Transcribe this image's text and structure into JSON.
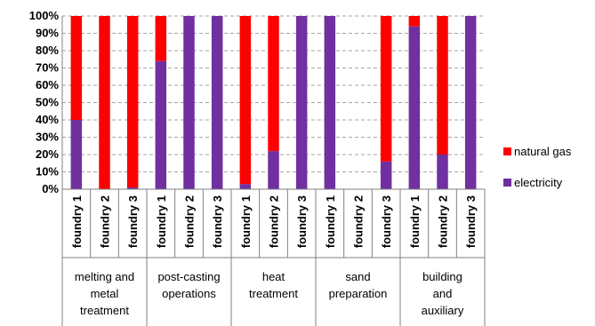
{
  "chart_data": {
    "type": "bar",
    "stacked": true,
    "percent": true,
    "ylim": [
      0,
      100
    ],
    "y_ticks": [
      "0%",
      "10%",
      "20%",
      "30%",
      "40%",
      "50%",
      "60%",
      "70%",
      "80%",
      "90%",
      "100%"
    ],
    "grid": "horizontal dashed",
    "legend_position": "right",
    "categories": [
      "foundry 1",
      "foundry 2",
      "foundry 3",
      "foundry 1",
      "foundry 2",
      "foundry 3",
      "foundry 1",
      "foundry 2",
      "foundry 3",
      "foundry 1",
      "foundry 2",
      "foundry 3",
      "foundry 1",
      "foundry 2",
      "foundry 3"
    ],
    "groups": [
      {
        "label_lines": [
          "melting and",
          "metal",
          "treatment"
        ],
        "start": 0,
        "count": 3
      },
      {
        "label_lines": [
          "post-casting",
          "operations"
        ],
        "start": 3,
        "count": 3
      },
      {
        "label_lines": [
          "heat",
          "treatment"
        ],
        "start": 6,
        "count": 3
      },
      {
        "label_lines": [
          "sand",
          "preparation"
        ],
        "start": 9,
        "count": 3
      },
      {
        "label_lines": [
          "building",
          "and",
          "auxiliary"
        ],
        "start": 12,
        "count": 3
      }
    ],
    "series": [
      {
        "name": "electricity",
        "color": "#7030A0",
        "values": [
          40,
          0,
          1,
          74,
          100,
          100,
          3,
          22,
          100,
          100,
          0,
          16,
          94,
          20,
          100
        ]
      },
      {
        "name": "natural gas",
        "color": "#FF0000",
        "values": [
          60,
          100,
          99,
          26,
          0,
          0,
          97,
          78,
          0,
          0,
          0,
          84,
          6,
          80,
          0
        ]
      }
    ],
    "legend_order": [
      "natural gas",
      "electricity"
    ]
  }
}
